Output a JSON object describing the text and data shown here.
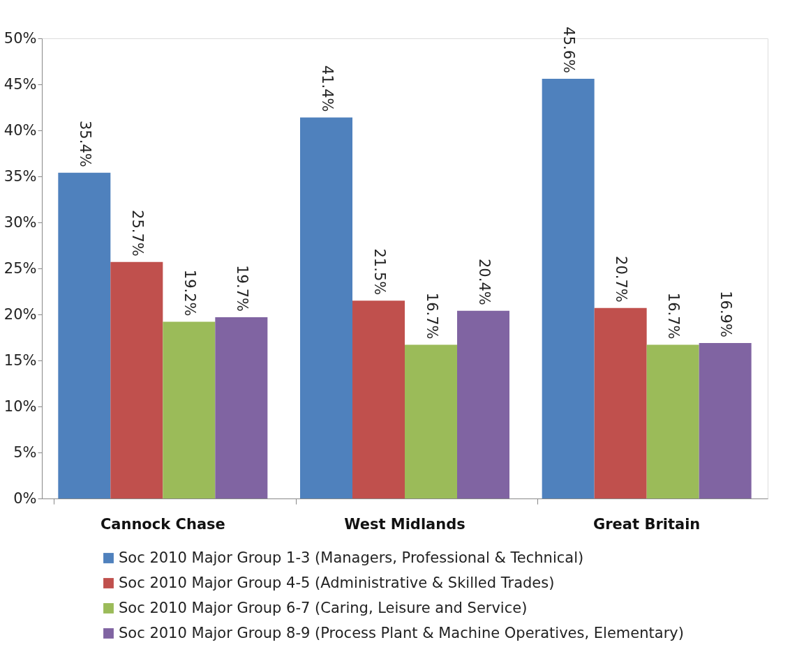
{
  "chart_data": {
    "type": "bar",
    "categories": [
      "Cannock Chase",
      "West Midlands",
      "Great Britain"
    ],
    "series": [
      {
        "name": "Soc 2010 Major Group 1-3 (Managers, Professional & Technical)",
        "color": "#4f81bd",
        "values": [
          35.4,
          41.4,
          45.6
        ],
        "value_labels": [
          "35.4%",
          "41.4%",
          "45.6%"
        ]
      },
      {
        "name": "Soc 2010 Major Group 4-5 (Administrative & Skilled Trades)",
        "color": "#c0504d",
        "values": [
          25.7,
          21.5,
          20.7
        ],
        "value_labels": [
          "25.7%",
          "21.5%",
          "20.7%"
        ]
      },
      {
        "name": "Soc 2010 Major Group 6-7 (Caring, Leisure and Service)",
        "color": "#9bbb59",
        "values": [
          19.2,
          16.7,
          16.7
        ],
        "value_labels": [
          "19.2%",
          "16.7%",
          "16.7%"
        ]
      },
      {
        "name": "Soc 2010 Major Group 8-9 (Process Plant & Machine Operatives, Elementary)",
        "color": "#8064a2",
        "values": [
          19.7,
          20.4,
          16.9
        ],
        "value_labels": [
          "19.7%",
          "20.4%",
          "16.9%"
        ]
      }
    ],
    "ylim": [
      0,
      50
    ],
    "yticks": [
      {
        "value": 0,
        "label": "0%"
      },
      {
        "value": 5,
        "label": "5%"
      },
      {
        "value": 10,
        "label": "10%"
      },
      {
        "value": 15,
        "label": "15%"
      },
      {
        "value": 20,
        "label": "20%"
      },
      {
        "value": 25,
        "label": "25%"
      },
      {
        "value": 30,
        "label": "30%"
      },
      {
        "value": 35,
        "label": "35%"
      },
      {
        "value": 40,
        "label": "40%"
      },
      {
        "value": 45,
        "label": "45%"
      },
      {
        "value": 50,
        "label": "50%"
      }
    ],
    "grid": false,
    "legend": "bottom"
  }
}
